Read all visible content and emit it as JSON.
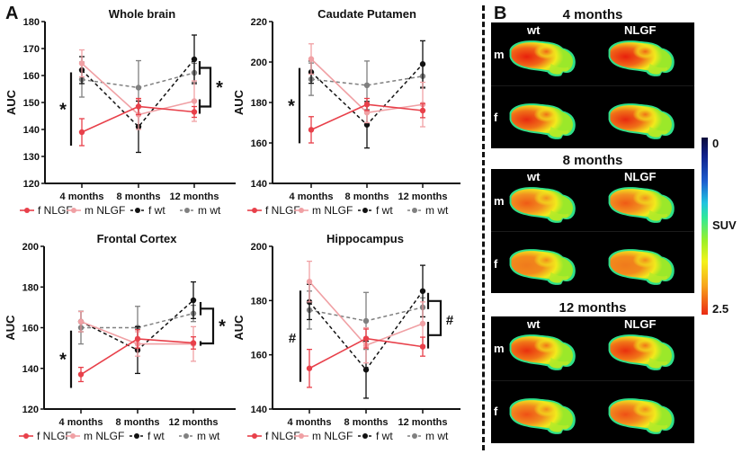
{
  "figure": {
    "panel_a_label": "A",
    "panel_b_label": "B"
  },
  "legend": [
    {
      "name": "f NLGF",
      "color": "#e8404a",
      "dash": false
    },
    {
      "name": "m NLGF",
      "color": "#f0a0a4",
      "dash": false
    },
    {
      "name": "f wt",
      "color": "#111111",
      "dash": true
    },
    {
      "name": "m wt",
      "color": "#808080",
      "dash": true
    }
  ],
  "chart_data": [
    {
      "type": "line",
      "title": "Whole brain",
      "xlabel": "",
      "ylabel": "AUC",
      "categories": [
        "4 months",
        "8 months",
        "12 months"
      ],
      "ylim": [
        120,
        180
      ],
      "yticks": [
        120,
        130,
        140,
        150,
        160,
        170,
        180
      ],
      "series": [
        {
          "name": "f NLGF",
          "values": [
            139,
            148.5,
            146.5
          ],
          "err": [
            5,
            3,
            2
          ]
        },
        {
          "name": "m NLGF",
          "values": [
            164.5,
            145.5,
            150.5
          ],
          "err": [
            5,
            5.5,
            7.5
          ]
        },
        {
          "name": "f wt",
          "values": [
            162,
            141,
            166
          ],
          "err": [
            5,
            9.5,
            9
          ]
        },
        {
          "name": "m wt",
          "values": [
            158.5,
            155.5,
            161
          ],
          "err": [
            6.5,
            10,
            3.5
          ]
        }
      ],
      "annotations": [
        {
          "symbol": "*",
          "type": "line",
          "at": "4 months"
        },
        {
          "symbol": "*",
          "type": "bracket",
          "at": "12 months"
        }
      ]
    },
    {
      "type": "line",
      "title": "Caudate Putamen",
      "xlabel": "",
      "ylabel": "AUC",
      "categories": [
        "4 months",
        "8 months",
        "12 months"
      ],
      "ylim": [
        140,
        220
      ],
      "yticks": [
        140,
        160,
        180,
        200,
        220
      ],
      "series": [
        {
          "name": "f NLGF",
          "values": [
            166.5,
            179,
            176
          ],
          "err": [
            6.5,
            3,
            3.5
          ]
        },
        {
          "name": "m NLGF",
          "values": [
            201.5,
            175,
            179
          ],
          "err": [
            7.5,
            5,
            11
          ]
        },
        {
          "name": "f wt",
          "values": [
            195,
            169,
            199
          ],
          "err": [
            5.5,
            11.5,
            11.5
          ]
        },
        {
          "name": "m wt",
          "values": [
            191.5,
            188.5,
            193
          ],
          "err": [
            8,
            12,
            6
          ]
        }
      ],
      "annotations": [
        {
          "symbol": "*",
          "type": "line",
          "at": "4 months"
        }
      ]
    },
    {
      "type": "line",
      "title": "Frontal Cortex",
      "xlabel": "",
      "ylabel": "AUC",
      "categories": [
        "4 months",
        "8 months",
        "12 months"
      ],
      "ylim": [
        120,
        200
      ],
      "yticks": [
        120,
        140,
        160,
        180,
        200
      ],
      "series": [
        {
          "name": "f NLGF",
          "values": [
            137,
            154.5,
            152.5
          ],
          "err": [
            3.5,
            4.5,
            3
          ]
        },
        {
          "name": "m NLGF",
          "values": [
            163,
            152,
            152
          ],
          "err": [
            5,
            6,
            8.5
          ]
        },
        {
          "name": "f wt",
          "values": [
            163,
            149,
            173.5
          ],
          "err": [
            5,
            11.5,
            9
          ]
        },
        {
          "name": "m wt",
          "values": [
            160,
            160,
            167
          ],
          "err": [
            8,
            10.5,
            4
          ]
        }
      ],
      "annotations": [
        {
          "symbol": "*",
          "type": "line",
          "at": "4 months"
        },
        {
          "symbol": "*",
          "type": "bracket",
          "at": "12 months"
        }
      ]
    },
    {
      "type": "line",
      "title": "Hippocampus",
      "xlabel": "",
      "ylabel": "AUC",
      "categories": [
        "4 months",
        "8 months",
        "12 months"
      ],
      "ylim": [
        140,
        200
      ],
      "yticks": [
        140,
        160,
        180,
        200
      ],
      "series": [
        {
          "name": "f NLGF",
          "values": [
            155,
            166,
            163
          ],
          "err": [
            7,
            3.5,
            3.5
          ]
        },
        {
          "name": "m NLGF",
          "values": [
            187,
            163.5,
            171.5
          ],
          "err": [
            7.5,
            6.5,
            8
          ]
        },
        {
          "name": "f wt",
          "values": [
            179.5,
            154.5,
            183.5
          ],
          "err": [
            6.5,
            10.5,
            9.5
          ]
        },
        {
          "name": "m wt",
          "values": [
            176.5,
            172.5,
            177.5
          ],
          "err": [
            7,
            10.5,
            3.5
          ]
        }
      ],
      "annotations": [
        {
          "symbol": "#",
          "type": "line",
          "at": "4 months"
        },
        {
          "symbol": "#",
          "type": "bracket",
          "at": "12 months"
        }
      ]
    }
  ],
  "pet": {
    "columns": [
      "wt",
      "NLGF"
    ],
    "rows": [
      "m",
      "f"
    ],
    "groups": [
      {
        "title": "4 months"
      },
      {
        "title": "8 months"
      },
      {
        "title": "12 months"
      }
    ],
    "colorbar": {
      "label": "SUV",
      "min_label": "0",
      "max_label": "2.5",
      "top_value": 0,
      "bottom_value": 2.5
    }
  }
}
